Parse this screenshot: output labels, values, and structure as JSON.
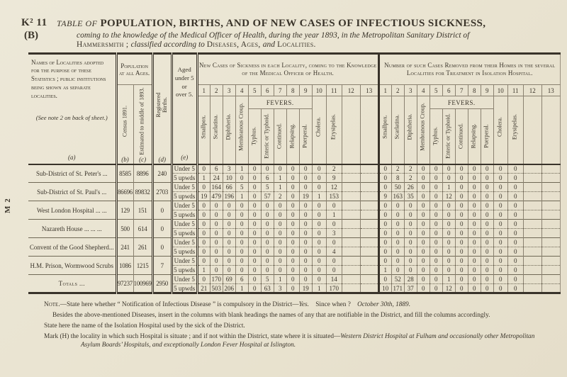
{
  "page": {
    "ref": "K² 11",
    "ref_sub": "(B)",
    "title_prefix": "TABLE OF",
    "title_main": "POPULATION, BIRTHS, AND OF NEW CASES OF INFECTIOUS SICKNESS,",
    "subtitle_italic": "coming to the knowledge of the Medical Officer of Health, during the year 1893, in the Metropolitan Sanitary District of",
    "subtitle_line2_segments": [
      {
        "text": "Hammersmith ; ",
        "style": "sc"
      },
      {
        "text": "classified according to ",
        "style": "it"
      },
      {
        "text": "Diseases, Ages, ",
        "style": "sc"
      },
      {
        "text": "and",
        "style": "it"
      },
      {
        "text": " Localities.",
        "style": "sc"
      }
    ],
    "margin_note": "M 2"
  },
  "table": {
    "names_header": "Names of Localities adopted for the purpose of these Statistics ; public institutions being shown as separate localities.",
    "names_note": "(See note 2 on back of sheet.)",
    "col_letters": [
      "(a)",
      "(b)",
      "(c)",
      "(d)",
      "(e)"
    ],
    "population_header": "Population at all Ages.",
    "census_label": "Census 1891.",
    "estimated_label": "Estimated to middle of 1893.",
    "births_label": "Registered Births.",
    "aged_label": "Aged\nunder 5\nor\nover 5.",
    "left_section_title": "New Cases of Sickness in each Locality, coming to the Knowledge of the Medical Officer of Health.",
    "right_section_title": "Number of such Cases Removed from their Homes in the several Localities for Treatment in Isolation Hospital.",
    "col_numbers": [
      "1",
      "2",
      "3",
      "4",
      "5",
      "6",
      "7",
      "8",
      "9",
      "10",
      "11",
      "12",
      "13"
    ],
    "fevers_label": "FEVERS.",
    "disease_labels": [
      "Smallpox.",
      "Scarlatina.",
      "Diphtheria.",
      "Membranous Croup.",
      "Typhus.",
      "Enteric or Typhoid.",
      "Continued.",
      "Relapsing.",
      "Puerperal.",
      "Cholera.",
      "Erysipelas.",
      "",
      ""
    ],
    "age_row_labels": [
      "Under 5",
      "5 upwds"
    ],
    "rows": [
      {
        "name": "Sub-District of St. Peter's    ...",
        "census": "8585",
        "estimated": "8896",
        "births": "240",
        "cases_under5": [
          "0",
          "6",
          "3",
          "1",
          "0",
          "0",
          "0",
          "0",
          "0",
          "0",
          "2",
          "",
          ""
        ],
        "cases_over5": [
          "1",
          "24",
          "10",
          "0",
          "0",
          "6",
          "1",
          "0",
          "0",
          "0",
          "9",
          "",
          ""
        ],
        "removed_under5": [
          "0",
          "2",
          "2",
          "0",
          "0",
          "0",
          "0",
          "0",
          "0",
          "0",
          "0",
          "",
          ""
        ],
        "removed_over5": [
          "0",
          "8",
          "2",
          "0",
          "0",
          "0",
          "0",
          "0",
          "0",
          "0",
          "0",
          "",
          ""
        ]
      },
      {
        "name": "Sub-District of St. Paul's    ...",
        "census": "86696",
        "estimated": "89832",
        "births": "2703",
        "cases_under5": [
          "0",
          "164",
          "66",
          "5",
          "0",
          "5",
          "1",
          "0",
          "0",
          "0",
          "12",
          "",
          ""
        ],
        "cases_over5": [
          "19",
          "479",
          "196",
          "1",
          "0",
          "57",
          "2",
          "0",
          "19",
          "1",
          "153",
          "",
          ""
        ],
        "removed_under5": [
          "0",
          "50",
          "26",
          "0",
          "0",
          "1",
          "0",
          "0",
          "0",
          "0",
          "0",
          "",
          ""
        ],
        "removed_over5": [
          "9",
          "163",
          "35",
          "0",
          "0",
          "12",
          "0",
          "0",
          "0",
          "0",
          "0",
          "",
          ""
        ]
      },
      {
        "name": "West London Hospital ...    ...",
        "census": "129",
        "estimated": "151",
        "births": "0",
        "cases_under5": [
          "0",
          "0",
          "0",
          "0",
          "0",
          "0",
          "0",
          "0",
          "0",
          "0",
          "0",
          "",
          ""
        ],
        "cases_over5": [
          "0",
          "0",
          "0",
          "0",
          "0",
          "0",
          "0",
          "0",
          "0",
          "0",
          "1",
          "",
          ""
        ],
        "removed_under5": [
          "0",
          "0",
          "0",
          "0",
          "0",
          "0",
          "0",
          "0",
          "0",
          "0",
          "0",
          "",
          ""
        ],
        "removed_over5": [
          "0",
          "0",
          "0",
          "0",
          "0",
          "0",
          "0",
          "0",
          "0",
          "0",
          "0",
          "",
          ""
        ]
      },
      {
        "name": "Nazareth House ...    ...    ...",
        "census": "500",
        "estimated": "614",
        "births": "0",
        "cases_under5": [
          "0",
          "0",
          "0",
          "0",
          "0",
          "0",
          "0",
          "0",
          "0",
          "0",
          "0",
          "",
          ""
        ],
        "cases_over5": [
          "0",
          "0",
          "0",
          "0",
          "0",
          "0",
          "0",
          "0",
          "0",
          "0",
          "3",
          "",
          ""
        ],
        "removed_under5": [
          "0",
          "0",
          "0",
          "0",
          "0",
          "0",
          "0",
          "0",
          "0",
          "0",
          "0",
          "",
          ""
        ],
        "removed_over5": [
          "0",
          "0",
          "0",
          "0",
          "0",
          "0",
          "0",
          "0",
          "0",
          "0",
          "0",
          "",
          ""
        ]
      },
      {
        "name": "Convent of the Good Shepherd...",
        "census": "241",
        "estimated": "261",
        "births": "0",
        "cases_under5": [
          "0",
          "0",
          "0",
          "0",
          "0",
          "0",
          "0",
          "0",
          "0",
          "0",
          "0",
          "",
          ""
        ],
        "cases_over5": [
          "0",
          "0",
          "0",
          "0",
          "0",
          "0",
          "0",
          "0",
          "0",
          "0",
          "4",
          "",
          ""
        ],
        "removed_under5": [
          "0",
          "0",
          "0",
          "0",
          "0",
          "0",
          "0",
          "0",
          "0",
          "0",
          "0",
          "",
          ""
        ],
        "removed_over5": [
          "0",
          "0",
          "0",
          "0",
          "0",
          "0",
          "0",
          "0",
          "0",
          "0",
          "0",
          "",
          ""
        ]
      },
      {
        "name": "H.M. Prison, Wormwood Scrubs",
        "census": "1086",
        "estimated": "1215",
        "births": "7",
        "cases_under5": [
          "0",
          "0",
          "0",
          "0",
          "0",
          "0",
          "0",
          "0",
          "0",
          "0",
          "0",
          "",
          ""
        ],
        "cases_over5": [
          "1",
          "0",
          "0",
          "0",
          "0",
          "0",
          "0",
          "0",
          "0",
          "0",
          "0",
          "",
          ""
        ],
        "removed_under5": [
          "0",
          "0",
          "0",
          "0",
          "0",
          "0",
          "0",
          "0",
          "0",
          "0",
          "0",
          "",
          ""
        ],
        "removed_over5": [
          "1",
          "0",
          "0",
          "0",
          "0",
          "0",
          "0",
          "0",
          "0",
          "0",
          "0",
          "",
          ""
        ]
      },
      {
        "name": "Totals  ...",
        "is_total": true,
        "census": "97237",
        "estimated": "100969",
        "births": "2950",
        "cases_under5": [
          "0",
          "170",
          "69",
          "6",
          "0",
          "5",
          "1",
          "0",
          "0",
          "0",
          "14",
          "",
          ""
        ],
        "cases_over5": [
          "21",
          "503",
          "206",
          "1",
          "0",
          "63",
          "3",
          "0",
          "19",
          "1",
          "170",
          "",
          ""
        ],
        "removed_under5": [
          "0",
          "52",
          "28",
          "0",
          "0",
          "1",
          "0",
          "0",
          "0",
          "0",
          "0",
          "",
          ""
        ],
        "removed_over5": [
          "10",
          "171",
          "37",
          "0",
          "0",
          "12",
          "0",
          "0",
          "0",
          "0",
          "0",
          "",
          ""
        ]
      }
    ]
  },
  "notes": {
    "lines": [
      {
        "indent": 0,
        "segments": [
          {
            "text": "Note.",
            "style": "sc"
          },
          {
            "text": "—State here whether “ Notification of Infectious Disease ” is compulsory in the District—",
            "style": ""
          },
          {
            "text": "Yes.",
            "style": "it"
          },
          {
            "text": " Since when ? ",
            "style": ""
          },
          {
            "text": "October 30th, 1889.",
            "style": "it"
          }
        ]
      },
      {
        "indent": 1,
        "segments": [
          {
            "text": "Besides the above-mentioned Diseases, insert in the columns with blank headings the names of any that are notifiable in the District, and fill the columns accordingly.",
            "style": ""
          }
        ]
      },
      {
        "indent": 0,
        "segments": [
          {
            "text": "State here the name of the Isolation Hospital used by the sick of the District.",
            "style": ""
          }
        ]
      },
      {
        "indent": 0,
        "segments": [
          {
            "text": "Mark (H) the locality in which such Hospital is situate ; and if not within the District, state where it is situated—",
            "style": ""
          },
          {
            "text": "Western District Hospital at Fulham and occasionally other Metropolitan Asylum Boards’ Hospitals, and exceptionally London Fever Hospital at Islington.",
            "style": "it"
          }
        ]
      }
    ]
  }
}
